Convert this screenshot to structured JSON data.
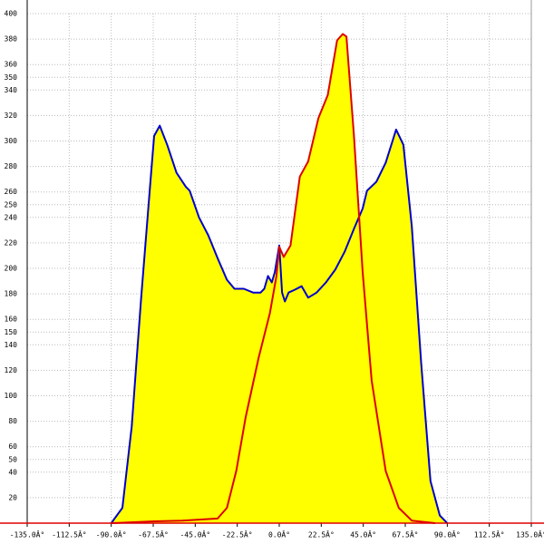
{
  "chart_data": {
    "type": "area",
    "xlim": [
      -135,
      135
    ],
    "ylim": [
      0,
      400
    ],
    "xticks": [
      {
        "value": -135,
        "label": "-135.0Â°"
      },
      {
        "value": -112.5,
        "label": "-112.5Â°"
      },
      {
        "value": -90,
        "label": "-90.0Â°"
      },
      {
        "value": -67.5,
        "label": "-67.5Â°"
      },
      {
        "value": -45,
        "label": "-45.0Â°"
      },
      {
        "value": -22.5,
        "label": "-22.5Â°"
      },
      {
        "value": 0,
        "label": "0.0Â°"
      },
      {
        "value": 22.5,
        "label": "22.5Â°"
      },
      {
        "value": 45,
        "label": "45.0Â°"
      },
      {
        "value": 67.5,
        "label": "67.5Â°"
      },
      {
        "value": 90,
        "label": "90.0Â°"
      },
      {
        "value": 112.5,
        "label": "112.5Â°"
      },
      {
        "value": 135,
        "label": "135.0Â°"
      }
    ],
    "yticks": [
      20,
      40,
      50,
      60,
      80,
      100,
      120,
      140,
      150,
      160,
      180,
      200,
      220,
      240,
      250,
      260,
      280,
      300,
      320,
      340,
      350,
      360,
      380,
      400
    ],
    "grid": true,
    "fill": "#ffff00",
    "series": [
      {
        "color": "#0000cc",
        "x": [
          -90,
          -84,
          -79,
          -74,
          -69,
          -67,
          -64,
          -60,
          -55,
          -50,
          -48,
          -43,
          -38,
          -33,
          -28,
          -24,
          -19,
          -14,
          -10,
          -8,
          -6,
          -4,
          -2.4,
          0,
          1.5,
          3,
          5,
          8,
          12,
          15.5,
          20,
          25,
          30,
          35,
          40,
          44.7,
          47,
          52,
          57,
          62.6,
          66.5,
          71,
          76,
          81,
          86,
          90
        ],
        "values": [
          0,
          12,
          76,
          176,
          268,
          304,
          312,
          297,
          275,
          264,
          261,
          240,
          226,
          208,
          191,
          184,
          184,
          181,
          181,
          184,
          194,
          189,
          197,
          218,
          181,
          174,
          181,
          183,
          186,
          177,
          181,
          189,
          199,
          213,
          231,
          247,
          261,
          268,
          283,
          309,
          297,
          233,
          126,
          33,
          6,
          0
        ]
      },
      {
        "color": "#dd0000",
        "x": [
          -90,
          -67,
          -52,
          -33,
          -28,
          -23,
          -18,
          -11,
          -5,
          -1.5,
          0,
          2.4,
          6,
          11,
          15.5,
          21,
          26,
          31,
          34,
          36,
          40,
          44.7,
          49.5,
          57,
          64,
          71,
          83.5
        ],
        "values": [
          0,
          1.4,
          2,
          3.6,
          12,
          41,
          83,
          130,
          165,
          194,
          217,
          209,
          218,
          272,
          284,
          318,
          336,
          379,
          384,
          382,
          304,
          197,
          112,
          41,
          12,
          2,
          0
        ]
      }
    ]
  }
}
